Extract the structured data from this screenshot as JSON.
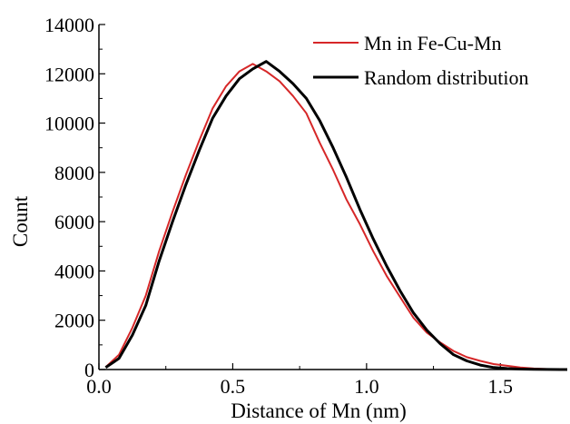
{
  "chart_data": {
    "type": "line",
    "xlabel": "Distance of Mn (nm)",
    "ylabel": "Count",
    "xlim": [
      0,
      1.75
    ],
    "ylim": [
      0,
      14000
    ],
    "x_ticks": [
      {
        "value": 0.0,
        "label": "0.0"
      },
      {
        "value": 0.5,
        "label": "0.5"
      },
      {
        "value": 1.0,
        "label": "1.0"
      },
      {
        "value": 1.5,
        "label": "1.5"
      }
    ],
    "y_ticks": [
      {
        "value": 0,
        "label": "0"
      },
      {
        "value": 2000,
        "label": "2000"
      },
      {
        "value": 4000,
        "label": "4000"
      },
      {
        "value": 6000,
        "label": "6000"
      },
      {
        "value": 8000,
        "label": "8000"
      },
      {
        "value": 10000,
        "label": "10000"
      },
      {
        "value": 12000,
        "label": "12000"
      },
      {
        "value": 14000,
        "label": "14000"
      }
    ],
    "grid": false,
    "legend_position": "top-right",
    "series": [
      {
        "name": "Mn in Fe-Cu-Mn",
        "color": "#d62728",
        "x": [
          0.025,
          0.075,
          0.125,
          0.175,
          0.225,
          0.275,
          0.325,
          0.375,
          0.425,
          0.475,
          0.525,
          0.575,
          0.625,
          0.675,
          0.725,
          0.775,
          0.825,
          0.875,
          0.925,
          0.975,
          1.025,
          1.075,
          1.125,
          1.175,
          1.225,
          1.275,
          1.325,
          1.375,
          1.425,
          1.475,
          1.525,
          1.575,
          1.625,
          1.675,
          1.725,
          1.775
        ],
        "y": [
          100,
          600,
          1700,
          3000,
          4800,
          6400,
          7900,
          9300,
          10600,
          11500,
          12100,
          12400,
          12100,
          11700,
          11100,
          10400,
          9200,
          8100,
          6900,
          5900,
          4800,
          3800,
          2950,
          2100,
          1500,
          1100,
          750,
          500,
          350,
          220,
          150,
          80,
          40,
          20,
          10,
          5
        ]
      },
      {
        "name": "Random distribution",
        "color": "#000000",
        "x": [
          0.025,
          0.075,
          0.125,
          0.175,
          0.225,
          0.275,
          0.325,
          0.375,
          0.425,
          0.475,
          0.525,
          0.575,
          0.625,
          0.675,
          0.725,
          0.775,
          0.825,
          0.875,
          0.925,
          0.975,
          1.025,
          1.075,
          1.125,
          1.175,
          1.225,
          1.275,
          1.325,
          1.375,
          1.425,
          1.475,
          1.525,
          1.575,
          1.625,
          1.675,
          1.725,
          1.775
        ],
        "y": [
          80,
          450,
          1400,
          2600,
          4400,
          6000,
          7500,
          8900,
          10200,
          11100,
          11800,
          12200,
          12500,
          12100,
          11600,
          11000,
          10100,
          9000,
          7800,
          6500,
          5300,
          4200,
          3200,
          2300,
          1600,
          1050,
          600,
          350,
          180,
          80,
          40,
          20,
          10,
          5,
          0,
          0
        ]
      }
    ]
  }
}
